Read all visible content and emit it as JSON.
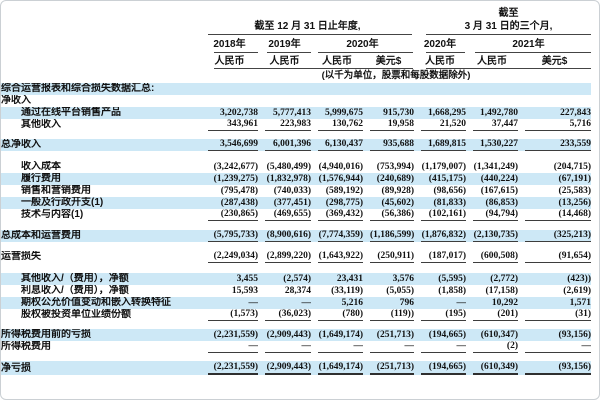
{
  "header": {
    "group1_title": "截至 12 月 31 日止年度,",
    "group2_title_line1": "截至",
    "group2_title_line2": "3 月 31 日的三个月,",
    "year_cols": [
      "2018年",
      "2019年",
      "2020年",
      "2020年",
      "2021年"
    ],
    "currency_cols": [
      "人民币",
      "人民币",
      "人民币",
      "美元$",
      "人民币",
      "人民币",
      "美元$"
    ],
    "units_note": "(以千为单位，股票和每股数据除外)"
  },
  "colors": {
    "highlight_blue": "#cde8f6",
    "rule_dark": "#3d3d3d",
    "page_border": "#cbd0d4"
  },
  "table": {
    "rows": [
      {
        "label": "综合运营报表和综合损失数据汇总:",
        "indent": false,
        "highlight": true,
        "rule": "none",
        "values": [
          "",
          "",
          "",
          "",
          "",
          "",
          ""
        ]
      },
      {
        "label": "净收入",
        "indent": false,
        "highlight": false,
        "rule": "none",
        "values": [
          "",
          "",
          "",
          "",
          "",
          "",
          ""
        ]
      },
      {
        "label": "通过在线平台销售产品",
        "indent": true,
        "highlight": true,
        "rule": "none",
        "values": [
          "3,202,738",
          "5,777,413",
          "5,999,675",
          "915,730",
          "1,668,295",
          "1,492,780",
          "227,843"
        ]
      },
      {
        "label": "其他收入",
        "indent": true,
        "highlight": false,
        "rule": "single",
        "values": [
          "343,961",
          "223,983",
          "130,762",
          "19,958",
          "21,520",
          "37,447",
          "5,716"
        ]
      },
      {
        "spacer": 8
      },
      {
        "label": "总净收入",
        "indent": false,
        "highlight": true,
        "rule": "single",
        "values": [
          "3,546,699",
          "6,001,396",
          "6,130,437",
          "935,688",
          "1,689,815",
          "1,530,227",
          "233,559"
        ]
      },
      {
        "spacer": 10
      },
      {
        "label": "收入成本",
        "indent": true,
        "highlight": false,
        "rule": "none",
        "values": [
          "(3,242,677)",
          "(5,480,499)",
          "(4,940,016)",
          "(753,994)",
          "(1,179,007)",
          "(1,341,249)",
          "(204,715)"
        ]
      },
      {
        "label": "履行费用",
        "indent": true,
        "highlight": true,
        "rule": "none",
        "values": [
          "(1,239,275)",
          "(1,832,978)",
          "(1,576,944)",
          "(240,689)",
          "(415,175)",
          "(440,224)",
          "(67,191)"
        ]
      },
      {
        "label": "销售和营销费用",
        "indent": true,
        "highlight": false,
        "rule": "none",
        "values": [
          "(795,478)",
          "(740,033)",
          "(589,192)",
          "(89,928)",
          "(98,656)",
          "(167,615)",
          "(25,583)"
        ]
      },
      {
        "label": "一般及行政开支(1)",
        "indent": true,
        "highlight": true,
        "rule": "none",
        "values": [
          "(287,438)",
          "(377,451)",
          "(298,775)",
          "(45,602)",
          "(81,833)",
          "(86,853)",
          "(13,256)"
        ]
      },
      {
        "label": "技术与内容(1)",
        "indent": true,
        "highlight": false,
        "rule": "single",
        "values": [
          "(230,865)",
          "(469,655)",
          "(369,432)",
          "(56,386)",
          "(102,161)",
          "(94,794)",
          "(14,468)"
        ]
      },
      {
        "spacer": 9
      },
      {
        "label": "总成本和运营费用",
        "indent": false,
        "highlight": true,
        "rule": "single",
        "values": [
          "(5,795,733)",
          "(8,900,616)",
          "(7,774,359)",
          "(1,186,599)",
          "(1,876,832)",
          "(2,130,735)",
          "(325,213)"
        ]
      },
      {
        "spacer": 9
      },
      {
        "label": "运营损失",
        "indent": false,
        "highlight": false,
        "rule": "single",
        "values": [
          "(2,249,034)",
          "(2,899,220)",
          "(1,643,922)",
          "(250,911)",
          "(187,017)",
          "(600,508)",
          "(91,654)"
        ]
      },
      {
        "spacer": 10
      },
      {
        "label": "其他收入/（费用），净额",
        "indent": true,
        "highlight": true,
        "rule": "none",
        "values": [
          "3,455",
          "(2,574)",
          "23,431",
          "3,576",
          "(5,595)",
          "(2,772)",
          "(423))"
        ]
      },
      {
        "label": "利息收入/（费用），净额",
        "indent": true,
        "highlight": false,
        "rule": "none",
        "values": [
          "15,593",
          "28,374",
          "(33,119)",
          "(5,055)",
          "(1,858)",
          "(17,158)",
          "(2,619)"
        ]
      },
      {
        "label": "期权公允价值变动和嵌入转换特征",
        "indent": true,
        "highlight": true,
        "rule": "none",
        "values": [
          "—",
          "—",
          "5,216",
          "796",
          "—",
          "10,292",
          "1,571"
        ]
      },
      {
        "label": "股权被投资单位业绩份额",
        "indent": true,
        "highlight": false,
        "rule": "single",
        "values": [
          "(1,573)",
          "(36,023)",
          "(780)",
          "(119))",
          "(195)",
          "(201)",
          "(31)"
        ]
      },
      {
        "spacer": 8
      },
      {
        "label": "所得税费用前的亏损",
        "indent": false,
        "highlight": true,
        "rule": "none",
        "values": [
          "(2,231,559)",
          "(2,909,443)",
          "(1,649,174)",
          "(251,713)",
          "(194,665)",
          "(610,347)",
          "(93,156)"
        ]
      },
      {
        "label": "所得税费用",
        "indent": false,
        "highlight": false,
        "rule": "single",
        "values": [
          "—",
          "—",
          "—",
          "—",
          "—",
          "(2)",
          "—"
        ]
      },
      {
        "spacer": 8
      },
      {
        "label": "净亏损",
        "indent": false,
        "highlight": true,
        "rule": "thick",
        "values": [
          "(2,231,559)",
          "(2,909,443)",
          "(1,649,174)",
          "(251,713)",
          "(194,665)",
          "(610,349)",
          "(93,156)"
        ]
      }
    ]
  }
}
